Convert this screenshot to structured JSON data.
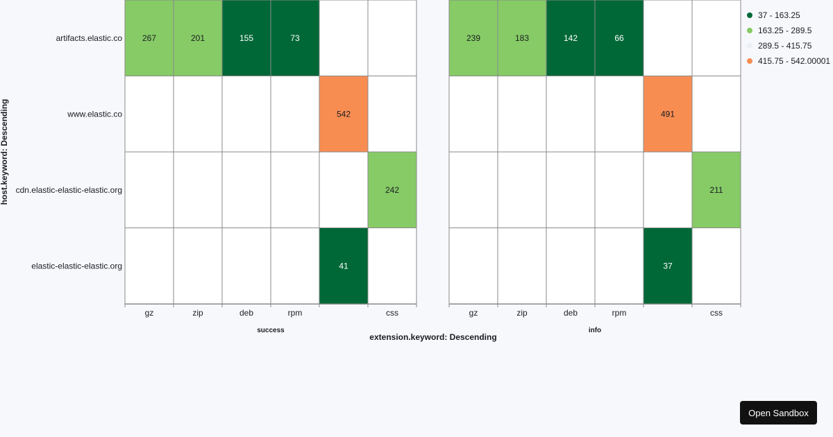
{
  "chart_data": {
    "type": "heatmap",
    "x_axis_title": "extension.keyword: Descending",
    "y_axis_title": "host.keyword: Descending",
    "rows": [
      "artifacts.elastic.co",
      "www.elastic.co",
      "cdn.elastic-elastic-elastic.org",
      "elastic-elastic-elastic.org"
    ],
    "columns": [
      "gz",
      "zip",
      "deb",
      "rpm",
      "",
      "css"
    ],
    "panels": [
      {
        "name": "success",
        "values": [
          [
            267,
            201,
            155,
            73,
            null,
            null
          ],
          [
            null,
            null,
            null,
            null,
            542,
            null
          ],
          [
            null,
            null,
            null,
            null,
            null,
            242
          ],
          [
            null,
            null,
            null,
            null,
            41,
            null
          ]
        ]
      },
      {
        "name": "info",
        "values": [
          [
            239,
            183,
            142,
            66,
            null,
            null
          ],
          [
            null,
            null,
            null,
            null,
            491,
            null
          ],
          [
            null,
            null,
            null,
            null,
            null,
            211
          ],
          [
            null,
            null,
            null,
            null,
            37,
            null
          ]
        ]
      }
    ],
    "legend": [
      {
        "label": "37 - 163.25",
        "min": 37,
        "max": 163.25,
        "color": "#006837"
      },
      {
        "label": "163.25 - 289.5",
        "min": 163.25,
        "max": 289.5,
        "color": "#86cb66"
      },
      {
        "label": "289.5 - 415.75",
        "min": 289.5,
        "max": 415.75,
        "color": "#eceff4"
      },
      {
        "label": "415.75 - 542.00001",
        "min": 415.75,
        "max": 542.00001,
        "color": "#f88d52"
      }
    ]
  },
  "sandbox_button": {
    "label": "Open Sandbox"
  }
}
